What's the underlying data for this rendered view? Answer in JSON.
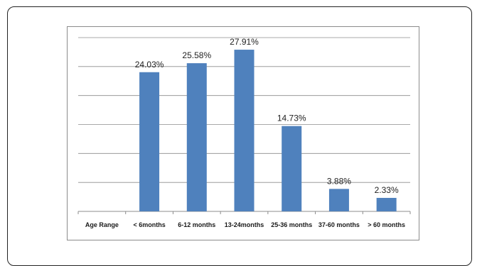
{
  "chart_data": {
    "type": "bar",
    "categories": [
      "Age Range",
      "< 6months",
      "6-12 months",
      "13-24months",
      "25-36 months",
      "37-60 months",
      "> 60 months"
    ],
    "values": [
      null,
      24.03,
      25.58,
      27.91,
      14.73,
      3.88,
      2.33
    ],
    "data_labels": [
      "",
      "24.03%",
      "25.58%",
      "27.91%",
      "14.73%",
      "3.88%",
      "2.33%"
    ],
    "ylim": [
      0,
      30
    ],
    "y_gridline_step": 5,
    "grid": true,
    "bar_color": "#4f81bd",
    "gridline_color": "#8c8c8c"
  }
}
